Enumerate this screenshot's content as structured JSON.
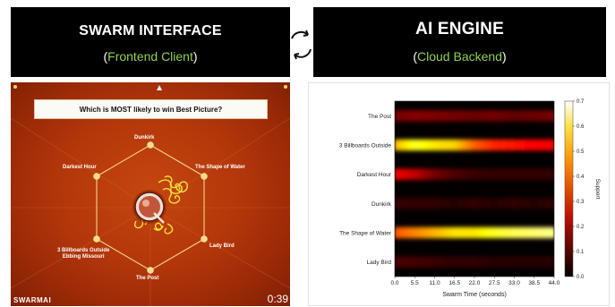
{
  "left_panel": {
    "title": "SWARM INTERFACE",
    "subtitle_open": "(",
    "subtitle": "Frontend Client",
    "subtitle_close": ")"
  },
  "right_panel": {
    "title": "AI ENGINE",
    "subtitle_open": "(",
    "subtitle": "Cloud Backend",
    "subtitle_close": ")"
  },
  "sync_icon": "sync-arrows-icon",
  "swarm": {
    "question": "Which is MOST likely to win Best Picture?",
    "options": {
      "top": "Dunkirk",
      "upper_right": "The Shape of Water",
      "lower_right": "Lady Bird",
      "bottom": "The Post",
      "lower_left_line1": "3 Billboards Outside",
      "lower_left_line2": "Ebbing Missouri",
      "upper_left": "Darkest Hour"
    },
    "brand": "SWARMAI",
    "timer": "0:39",
    "colors": {
      "background": "#b4370b",
      "hex_line": "#f2d48a",
      "traces": "#f3e23a"
    }
  },
  "chart_data": {
    "type": "heatmap",
    "title": "",
    "xlabel": "Swarm Time (seconds)",
    "ylabel": "",
    "rows": [
      "The Post",
      "3 Billboards Outside",
      "Darkest Hour",
      "Dunkirk",
      "The Shape of Water",
      "Lady Bird"
    ],
    "x_ticks": [
      "0.0",
      "5.5",
      "11.0",
      "16.5",
      "22.0",
      "27.5",
      "33.0",
      "38.5",
      "44.0"
    ],
    "xlim": [
      0,
      44
    ],
    "colorbar": {
      "label": "Support",
      "ticks": [
        "0.0",
        "0.1",
        "0.2",
        "0.3",
        "0.4",
        "0.5",
        "0.6",
        "0.7"
      ],
      "range": [
        0,
        0.7
      ]
    },
    "colormap": "hot",
    "x_samples": [
      0,
      5.5,
      11,
      16.5,
      22,
      27.5,
      33,
      38.5,
      44
    ],
    "series": [
      {
        "name": "The Post",
        "values": [
          0.12,
          0.14,
          0.13,
          0.12,
          0.11,
          0.12,
          0.1,
          0.11,
          0.12
        ]
      },
      {
        "name": "3 Billboards Outside",
        "values": [
          0.45,
          0.55,
          0.5,
          0.48,
          0.36,
          0.3,
          0.28,
          0.26,
          0.25
        ]
      },
      {
        "name": "Darkest Hour",
        "values": [
          0.25,
          0.2,
          0.12,
          0.08,
          0.06,
          0.05,
          0.05,
          0.05,
          0.05
        ]
      },
      {
        "name": "Dunkirk",
        "values": [
          0.06,
          0.05,
          0.05,
          0.04,
          0.05,
          0.04,
          0.05,
          0.04,
          0.05
        ]
      },
      {
        "name": "The Shape of Water",
        "values": [
          0.35,
          0.4,
          0.45,
          0.5,
          0.5,
          0.55,
          0.58,
          0.6,
          0.62
        ]
      },
      {
        "name": "Lady Bird",
        "values": [
          0.08,
          0.07,
          0.06,
          0.05,
          0.05,
          0.04,
          0.04,
          0.04,
          0.04
        ]
      }
    ]
  }
}
